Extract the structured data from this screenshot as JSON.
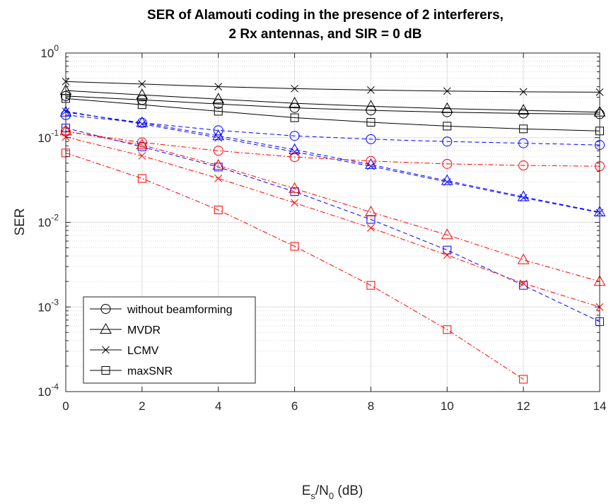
{
  "chart_data": {
    "type": "line",
    "title_line1": "SER of Alamouti coding in the presence of 2 interferers,",
    "title_line2": "2 Rx antennas, and SIR = 0 dB",
    "xlabel_main": "E",
    "xlabel_sub1": "s",
    "xlabel_mid": "/N",
    "xlabel_sub2": "0",
    "xlabel_tail": " (dB)",
    "ylabel": "SER",
    "xlim": [
      0,
      14
    ],
    "ylim": [
      0.0001,
      1
    ],
    "yscale": "log",
    "grid": true,
    "x_ticks": [
      "0",
      "2",
      "4",
      "6",
      "8",
      "10",
      "12",
      "14"
    ],
    "y_ticks": [
      {
        "base": "10",
        "exp": "0",
        "value": 1
      },
      {
        "base": "10",
        "exp": "-1",
        "value": 0.1
      },
      {
        "base": "10",
        "exp": "-2",
        "value": 0.01
      },
      {
        "base": "10",
        "exp": "-3",
        "value": 0.001
      },
      {
        "base": "10",
        "exp": "-4",
        "value": 0.0001
      }
    ],
    "colors": {
      "black": "#000000",
      "blue": "#0000ff",
      "red": "#ff0000"
    },
    "legend": {
      "position": "bottom-left",
      "entries": [
        {
          "label": "without beamforming",
          "marker": "circle"
        },
        {
          "label": "MVDR",
          "marker": "triangle"
        },
        {
          "label": "LCMV",
          "marker": "x"
        },
        {
          "label": "maxSNR",
          "marker": "square"
        }
      ]
    },
    "series": [
      {
        "group": "black",
        "linestyle": "solid",
        "marker": "circle",
        "x": [
          0,
          2,
          4,
          6,
          8,
          10,
          12,
          14
        ],
        "y": [
          0.31,
          0.28,
          0.25,
          0.225,
          0.21,
          0.2,
          0.193,
          0.19
        ]
      },
      {
        "group": "black",
        "linestyle": "solid",
        "marker": "triangle",
        "x": [
          0,
          2,
          4,
          6,
          8,
          10,
          12,
          14
        ],
        "y": [
          0.36,
          0.32,
          0.285,
          0.255,
          0.235,
          0.22,
          0.21,
          0.2
        ]
      },
      {
        "group": "black",
        "linestyle": "solid",
        "marker": "x",
        "x": [
          0,
          2,
          4,
          6,
          8,
          10,
          12,
          14
        ],
        "y": [
          0.46,
          0.43,
          0.4,
          0.38,
          0.365,
          0.355,
          0.348,
          0.345
        ]
      },
      {
        "group": "black",
        "linestyle": "solid",
        "marker": "square",
        "x": [
          0,
          2,
          4,
          6,
          8,
          10,
          12,
          14
        ],
        "y": [
          0.29,
          0.245,
          0.205,
          0.172,
          0.152,
          0.137,
          0.127,
          0.12
        ]
      },
      {
        "group": "blue",
        "linestyle": "dashed",
        "marker": "circle",
        "x": [
          0,
          2,
          4,
          6,
          8,
          10,
          12,
          14
        ],
        "y": [
          0.185,
          0.15,
          0.122,
          0.105,
          0.096,
          0.09,
          0.086,
          0.082
        ]
      },
      {
        "group": "blue",
        "linestyle": "dashed",
        "marker": "triangle",
        "x": [
          0,
          2,
          4,
          6,
          8,
          10,
          12,
          14
        ],
        "y": [
          0.2,
          0.15,
          0.105,
          0.072,
          0.048,
          0.031,
          0.02,
          0.0132
        ]
      },
      {
        "group": "blue",
        "linestyle": "dashed",
        "marker": "x",
        "x": [
          0,
          2,
          4,
          6,
          8,
          10,
          12,
          14
        ],
        "y": [
          0.205,
          0.145,
          0.1,
          0.068,
          0.046,
          0.03,
          0.0195,
          0.013
        ]
      },
      {
        "group": "blue",
        "linestyle": "dashed",
        "marker": "square",
        "x": [
          0,
          2,
          4,
          6,
          8,
          10,
          12,
          14
        ],
        "y": [
          0.13,
          0.078,
          0.045,
          0.023,
          0.0108,
          0.0047,
          0.0018,
          0.00067
        ]
      },
      {
        "group": "red",
        "linestyle": "dashdot",
        "marker": "circle",
        "x": [
          0,
          2,
          4,
          6,
          8,
          10,
          12,
          14
        ],
        "y": [
          0.118,
          0.088,
          0.07,
          0.059,
          0.053,
          0.049,
          0.047,
          0.046
        ]
      },
      {
        "group": "red",
        "linestyle": "dashdot",
        "marker": "triangle",
        "x": [
          0,
          2,
          4,
          6,
          8,
          10,
          12,
          14
        ],
        "y": [
          0.12,
          0.082,
          0.047,
          0.025,
          0.0132,
          0.0071,
          0.0036,
          0.002
        ]
      },
      {
        "group": "red",
        "linestyle": "dashdot",
        "marker": "x",
        "x": [
          0,
          2,
          4,
          6,
          8,
          10,
          12,
          14
        ],
        "y": [
          0.102,
          0.061,
          0.033,
          0.017,
          0.0086,
          0.0041,
          0.0019,
          0.001
        ]
      },
      {
        "group": "red",
        "linestyle": "dashdot",
        "marker": "square",
        "x": [
          0,
          2,
          4,
          6,
          8,
          10,
          12
        ],
        "y": [
          0.066,
          0.033,
          0.014,
          0.0052,
          0.0018,
          0.00054,
          0.00014
        ]
      }
    ]
  }
}
